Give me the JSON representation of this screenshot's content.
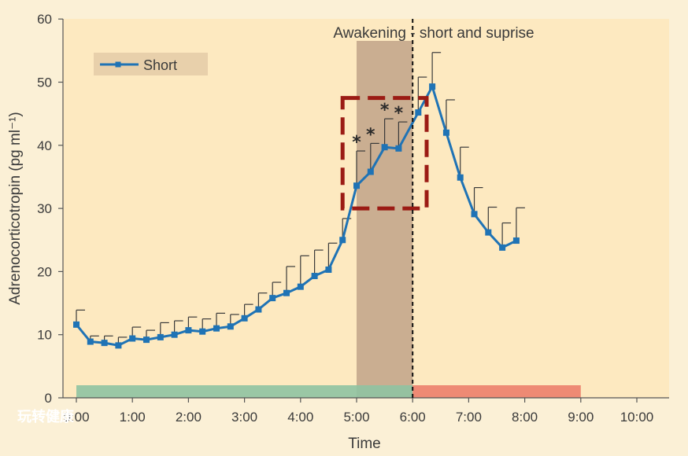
{
  "chart_data": {
    "type": "line",
    "title": "",
    "xlabel": "Time",
    "ylabel": "Adrenocorticotropin (pg ml⁻¹)",
    "ylim": [
      0,
      60
    ],
    "y_ticks": [
      0,
      10,
      20,
      30,
      40,
      50,
      60
    ],
    "x_ticks": [
      "0:00",
      "1:00",
      "2:00",
      "3:00",
      "4:00",
      "5:00",
      "6:00",
      "7:00",
      "8:00",
      "9:00",
      "10:00"
    ],
    "annotation": "Awakening - short and suprise",
    "awakening_time": 6.0,
    "shaded_interval": [
      5.0,
      6.0
    ],
    "highlight_box": {
      "x_range": [
        4.75,
        6.25
      ],
      "y_range": [
        30,
        47.5
      ],
      "color": "#9b1b14",
      "style": "dashed"
    },
    "bars": [
      {
        "x_range": [
          0.0,
          6.0
        ],
        "color": "#8fc3a2"
      },
      {
        "x_range": [
          6.0,
          9.0
        ],
        "color": "#ec7f6c"
      }
    ],
    "grid": false,
    "legend_position": "top-left",
    "series": [
      {
        "name": "Short",
        "color": "#1f73b5",
        "x": [
          0.0,
          0.25,
          0.5,
          0.75,
          1.0,
          1.25,
          1.5,
          1.75,
          2.0,
          2.25,
          2.5,
          2.75,
          3.0,
          3.25,
          3.5,
          3.75,
          4.0,
          4.25,
          4.5,
          4.75,
          5.0,
          5.25,
          5.5,
          5.75,
          6.1,
          6.35,
          6.6,
          6.85,
          7.1,
          7.35,
          7.6,
          7.85
        ],
        "y": [
          11.6,
          8.9,
          8.7,
          8.3,
          9.4,
          9.2,
          9.6,
          10.0,
          10.7,
          10.5,
          11.0,
          11.3,
          12.6,
          14.0,
          15.8,
          16.6,
          17.6,
          19.3,
          20.3,
          25.0,
          33.6,
          35.8,
          39.7,
          39.5,
          45.2,
          49.3,
          42.0,
          34.9,
          29.1,
          26.2,
          23.8,
          24.9
        ],
        "error": [
          2.3,
          0.9,
          1.1,
          1.3,
          1.8,
          1.5,
          2.3,
          2.2,
          2.1,
          2.0,
          2.4,
          1.9,
          2.2,
          2.6,
          2.5,
          4.2,
          4.9,
          4.1,
          4.2,
          3.4,
          5.5,
          4.5,
          4.5,
          4.2,
          5.6,
          5.4,
          5.2,
          4.8,
          4.2,
          4.0,
          3.9,
          5.2
        ],
        "significant_x": [
          5.0,
          5.25,
          5.5,
          5.75
        ]
      }
    ]
  },
  "legend": {
    "label": "Short"
  },
  "watermark": "玩转健康",
  "significance_marker": "*"
}
